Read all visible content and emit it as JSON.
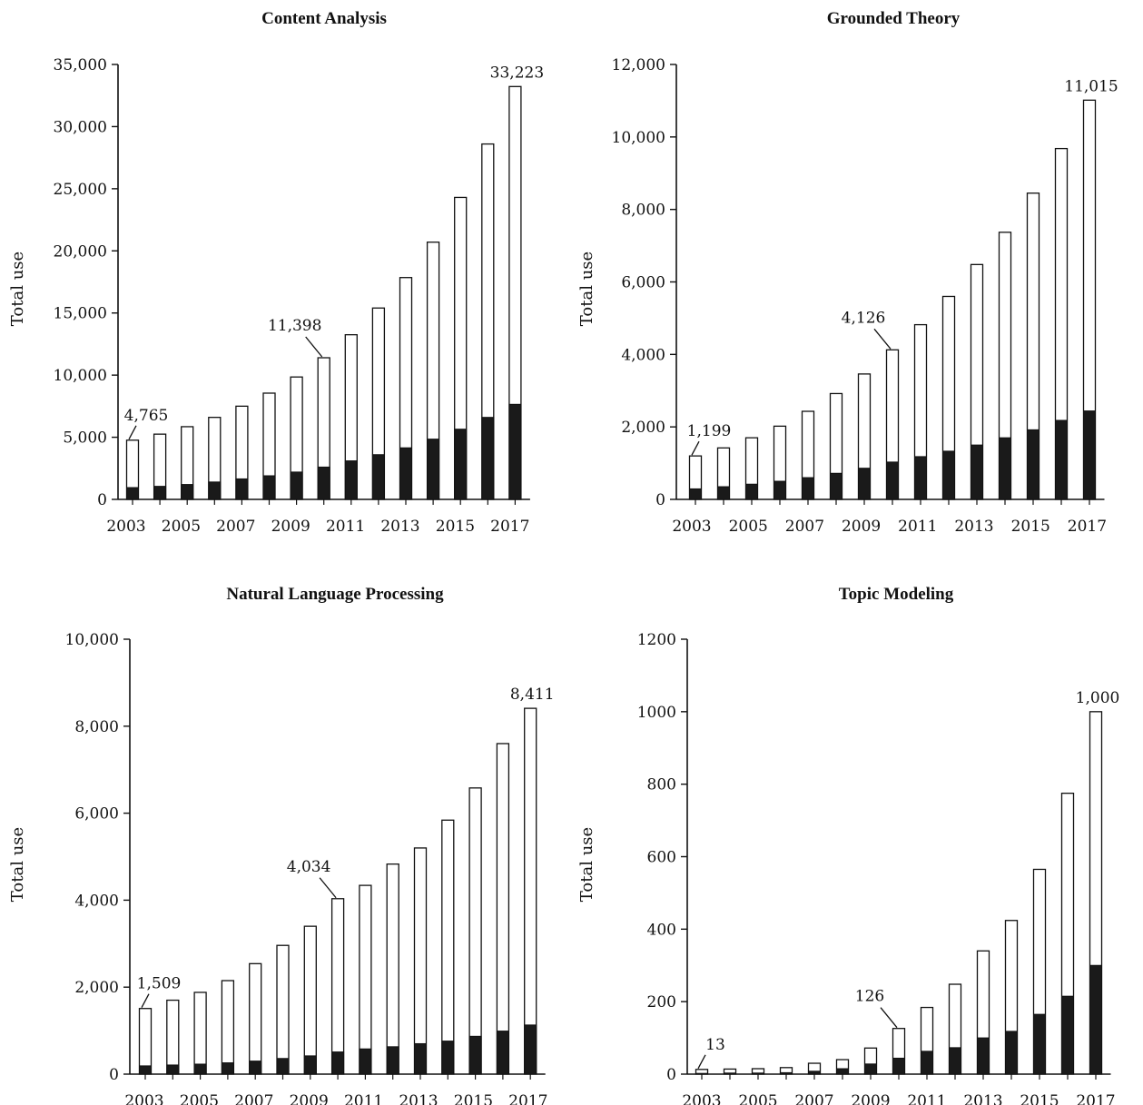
{
  "chart_data": [
    {
      "type": "bar",
      "title": "Content Analysis",
      "xlabel": "",
      "ylabel": "Total use",
      "ylim": [
        0,
        35000
      ],
      "yticks": [
        "0",
        "5,000",
        "10,000",
        "15,000",
        "20,000",
        "25,000",
        "30,000",
        "35,000"
      ],
      "ytick_values": [
        0,
        5000,
        10000,
        15000,
        20000,
        25000,
        30000,
        35000
      ],
      "xtick_labels": [
        "2003",
        "2005",
        "2007",
        "2009",
        "2011",
        "2013",
        "2015",
        "2017"
      ],
      "categories": [
        "2003",
        "2004",
        "2005",
        "2006",
        "2007",
        "2008",
        "2009",
        "2010",
        "2011",
        "2012",
        "2013",
        "2014",
        "2015",
        "2016",
        "2017"
      ],
      "series": [
        {
          "values": [
            4765,
            5250,
            5850,
            6600,
            7500,
            8550,
            9850,
            11398,
            13250,
            15400,
            17850,
            20700,
            24300,
            28600,
            33223
          ]
        },
        {
          "values": [
            950,
            1050,
            1200,
            1400,
            1650,
            1900,
            2200,
            2600,
            3100,
            3600,
            4150,
            4850,
            5650,
            6600,
            7650
          ]
        }
      ],
      "annotations": [
        {
          "text": "4,765",
          "category": "2003",
          "value": 4765
        },
        {
          "text": "11,398",
          "category": "2010",
          "value": 11398
        },
        {
          "text": "33,223",
          "category": "2017",
          "value": 33223
        }
      ],
      "colors": {
        "total": "#ffffff",
        "subset": "#1a1a1a",
        "outline": "#111111"
      }
    },
    {
      "type": "bar",
      "title": "Grounded Theory",
      "xlabel": "",
      "ylabel": "Total use",
      "ylim": [
        0,
        12000
      ],
      "yticks": [
        "0",
        "2,000",
        "4,000",
        "6,000",
        "8,000",
        "10,000",
        "12,000"
      ],
      "ytick_values": [
        0,
        2000,
        4000,
        6000,
        8000,
        10000,
        12000
      ],
      "xtick_labels": [
        "2003",
        "2005",
        "2007",
        "2009",
        "2011",
        "2013",
        "2015",
        "2017"
      ],
      "categories": [
        "2003",
        "2004",
        "2005",
        "2006",
        "2007",
        "2008",
        "2009",
        "2010",
        "2011",
        "2012",
        "2013",
        "2014",
        "2015",
        "2016",
        "2017"
      ],
      "series": [
        {
          "values": [
            1199,
            1420,
            1700,
            2020,
            2430,
            2920,
            3460,
            4126,
            4820,
            5600,
            6480,
            7370,
            8450,
            9680,
            11015
          ]
        },
        {
          "values": [
            290,
            350,
            420,
            500,
            600,
            720,
            860,
            1030,
            1180,
            1330,
            1500,
            1700,
            1920,
            2180,
            2440
          ]
        }
      ],
      "annotations": [
        {
          "text": "1,199",
          "category": "2003",
          "value": 1199
        },
        {
          "text": "4,126",
          "category": "2010",
          "value": 4126
        },
        {
          "text": "11,015",
          "category": "2017",
          "value": 11015
        }
      ],
      "colors": {
        "total": "#ffffff",
        "subset": "#1a1a1a",
        "outline": "#111111"
      }
    },
    {
      "type": "bar",
      "title": "Natural Language Processing",
      "xlabel": "",
      "ylabel": "Total use",
      "ylim": [
        0,
        10000
      ],
      "yticks": [
        "0",
        "2,000",
        "4,000",
        "6,000",
        "8,000",
        "10,000"
      ],
      "ytick_values": [
        0,
        2000,
        4000,
        6000,
        8000,
        10000
      ],
      "xtick_labels": [
        "2003",
        "2005",
        "2007",
        "2009",
        "2011",
        "2013",
        "2015",
        "2017"
      ],
      "categories": [
        "2003",
        "2004",
        "2005",
        "2006",
        "2007",
        "2008",
        "2009",
        "2010",
        "2011",
        "2012",
        "2013",
        "2014",
        "2015",
        "2016",
        "2017"
      ],
      "series": [
        {
          "values": [
            1509,
            1700,
            1880,
            2150,
            2540,
            2960,
            3400,
            4034,
            4340,
            4830,
            5200,
            5840,
            6580,
            7600,
            8411
          ]
        },
        {
          "values": [
            190,
            210,
            230,
            260,
            300,
            360,
            420,
            510,
            580,
            630,
            700,
            760,
            870,
            990,
            1130
          ]
        }
      ],
      "annotations": [
        {
          "text": "1,509",
          "category": "2003",
          "value": 1509
        },
        {
          "text": "4,034",
          "category": "2010",
          "value": 4034
        },
        {
          "text": "8,411",
          "category": "2017",
          "value": 8411
        }
      ],
      "colors": {
        "total": "#ffffff",
        "subset": "#1a1a1a",
        "outline": "#111111"
      }
    },
    {
      "type": "bar",
      "title": "Topic Modeling",
      "xlabel": "",
      "ylabel": "Total use",
      "ylim": [
        0,
        1200
      ],
      "yticks": [
        "0",
        "200",
        "400",
        "600",
        "800",
        "1000",
        "1200"
      ],
      "ytick_values": [
        0,
        200,
        400,
        600,
        800,
        1000,
        1200
      ],
      "xtick_labels": [
        "2003",
        "2005",
        "2007",
        "2009",
        "2011",
        "2013",
        "2015",
        "2017"
      ],
      "categories": [
        "2003",
        "2004",
        "2005",
        "2006",
        "2007",
        "2008",
        "2009",
        "2010",
        "2011",
        "2012",
        "2013",
        "2014",
        "2015",
        "2016",
        "2017"
      ],
      "series": [
        {
          "values": [
            13,
            14,
            15,
            18,
            30,
            40,
            72,
            126,
            184,
            248,
            340,
            424,
            565,
            775,
            1000
          ]
        },
        {
          "values": [
            2,
            3,
            3,
            4,
            8,
            15,
            28,
            44,
            63,
            73,
            100,
            118,
            165,
            215,
            300
          ]
        }
      ],
      "annotations": [
        {
          "text": "13",
          "category": "2003",
          "value": 13
        },
        {
          "text": "126",
          "category": "2010",
          "value": 126
        },
        {
          "text": "1,000",
          "category": "2017",
          "value": 1000
        }
      ],
      "colors": {
        "total": "#ffffff",
        "subset": "#1a1a1a",
        "outline": "#111111"
      }
    }
  ]
}
